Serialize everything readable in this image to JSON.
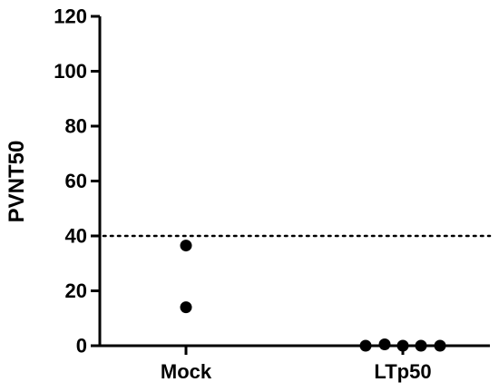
{
  "chart_data": {
    "type": "scatter",
    "title": "",
    "xlabel": "",
    "ylabel": "PVNT50",
    "categories": [
      "Mock",
      "LTp50"
    ],
    "yticks": [
      "0",
      "20",
      "40",
      "60",
      "80",
      "100",
      "120"
    ],
    "ylim": [
      0,
      120
    ],
    "grid": false,
    "reference_line": {
      "y": 40,
      "style": "dotted"
    },
    "series": [
      {
        "category": "Mock",
        "points": [
          {
            "x": "Mock",
            "y": 36.5
          },
          {
            "x": "Mock",
            "y": 14
          }
        ]
      },
      {
        "category": "LTp50",
        "points": [
          {
            "x": "LTp50",
            "y": 0
          },
          {
            "x": "LTp50",
            "y": 0.5
          },
          {
            "x": "LTp50",
            "y": 0
          },
          {
            "x": "LTp50",
            "y": 0
          },
          {
            "x": "LTp50",
            "y": 0
          }
        ]
      }
    ],
    "colors": {
      "axis": "#000000",
      "points": "#000000",
      "reference_line": "#000000"
    }
  }
}
